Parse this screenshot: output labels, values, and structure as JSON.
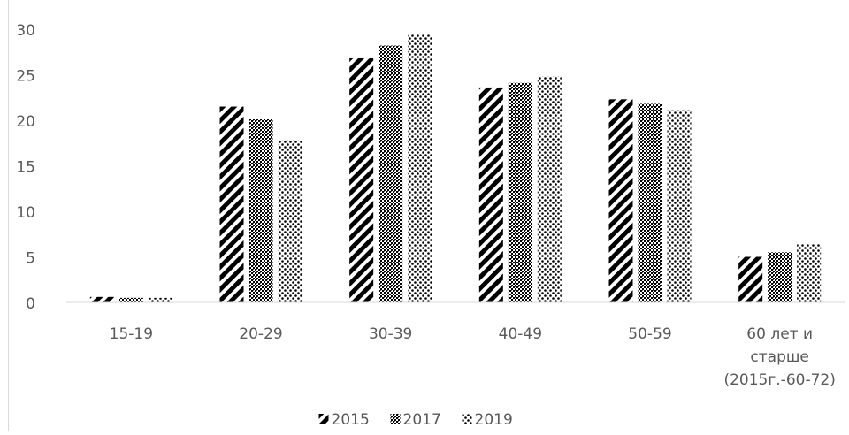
{
  "chart_data": {
    "type": "bar",
    "title": "",
    "xlabel": "",
    "ylabel": "",
    "ylim": [
      0,
      30
    ],
    "yticks": [
      0,
      5,
      10,
      15,
      20,
      25,
      30
    ],
    "grid": false,
    "legend_position": "bottom",
    "categories": [
      [
        "15-19"
      ],
      [
        "20-29"
      ],
      [
        "30-39"
      ],
      [
        "40-49"
      ],
      [
        "50-59"
      ],
      [
        "60 лет и",
        "старше",
        "(2015г.-60-72)"
      ]
    ],
    "series": [
      {
        "name": "2015",
        "pattern": "diagonal-stripes",
        "values": [
          0.6,
          21.5,
          26.8,
          23.6,
          22.3,
          5.0
        ]
      },
      {
        "name": "2017",
        "pattern": "crosshatch",
        "values": [
          0.5,
          20.1,
          28.2,
          24.1,
          21.8,
          5.5
        ]
      },
      {
        "name": "2019",
        "pattern": "dots",
        "values": [
          0.5,
          17.8,
          29.4,
          24.8,
          21.1,
          6.4
        ]
      }
    ],
    "colors": {
      "text": "#595959",
      "axis": "#d9d9d9",
      "mark": "#000000"
    }
  }
}
